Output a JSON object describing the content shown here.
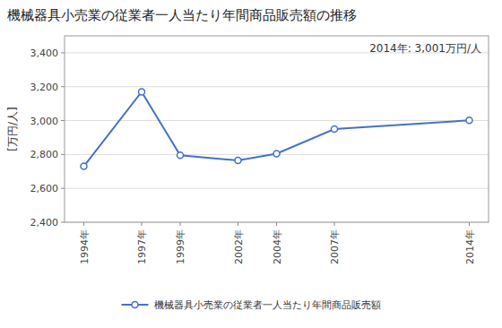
{
  "chart_data": {
    "type": "line",
    "title": "機械器具小売業の従業者一人当たり年間商品販売額の推移",
    "y_label": "[万円/人]",
    "annotation": "2014年: 3,001万円/人",
    "x": [
      1994,
      1997,
      1999,
      2002,
      2004,
      2007,
      2014
    ],
    "series": [
      {
        "name": "機械器具小売業の従業者一人当たり年間商品販売額",
        "color": "#4472C4",
        "marker": "circle",
        "values": [
          2730,
          3170,
          2795,
          2765,
          2805,
          2950,
          3001
        ]
      }
    ],
    "xlim": [
      1993,
      2015
    ],
    "xticks": [
      {
        "value": 1994,
        "label": "1994年"
      },
      {
        "value": 1997,
        "label": "1997年"
      },
      {
        "value": 1999,
        "label": "1999年"
      },
      {
        "value": 2002,
        "label": "2002年"
      },
      {
        "value": 2004,
        "label": "2004年"
      },
      {
        "value": 2007,
        "label": "2007年"
      },
      {
        "value": 2014,
        "label": "2014年"
      }
    ],
    "ylim": [
      2400,
      3500
    ],
    "yticks": [
      {
        "value": 2400,
        "label": "2,400"
      },
      {
        "value": 2600,
        "label": "2,600"
      },
      {
        "value": 2800,
        "label": "2,800"
      },
      {
        "value": 3000,
        "label": "3,000"
      },
      {
        "value": 3200,
        "label": "3,200"
      },
      {
        "value": 3400,
        "label": "3,400"
      }
    ],
    "grid": true,
    "legend": "bottom"
  }
}
